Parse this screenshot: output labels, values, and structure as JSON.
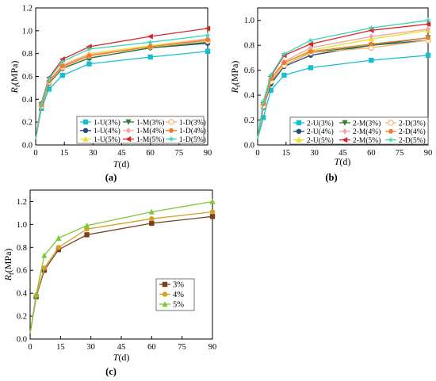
{
  "chart_data": [
    {
      "panel": "(a)",
      "type": "line",
      "xlabel": "T(d)",
      "ylabel": "Rf(MPa)",
      "xlim": [
        0,
        90
      ],
      "ylim": [
        0,
        1.2
      ],
      "xticks": [
        0,
        15,
        30,
        45,
        60,
        75,
        90
      ],
      "yticks": [
        0.0,
        0.2,
        0.4,
        0.6,
        0.8,
        1.0,
        1.2
      ],
      "x": [
        0,
        3,
        7,
        14,
        28,
        60,
        90
      ],
      "legend_columns": 3,
      "series": [
        {
          "name": "1-U(3%)",
          "color": "#17becf",
          "marker": "square",
          "values": [
            0.05,
            0.32,
            0.49,
            0.61,
            0.71,
            0.77,
            0.82
          ]
        },
        {
          "name": "1-U(4%)",
          "color": "#1f4e79",
          "marker": "circle",
          "values": [
            0.05,
            0.34,
            0.54,
            0.67,
            0.76,
            0.85,
            0.89
          ]
        },
        {
          "name": "1-U(5%)",
          "color": "#e8e22a",
          "marker": "triangle-up",
          "values": [
            0.05,
            0.35,
            0.56,
            0.7,
            0.8,
            0.87,
            0.93
          ]
        },
        {
          "name": "1-M(3%)",
          "color": "#2e7d32",
          "marker": "triangle-down",
          "values": [
            0.05,
            0.34,
            0.54,
            0.67,
            0.76,
            0.85,
            0.9
          ]
        },
        {
          "name": "1-M(4%)",
          "color": "#f4a6a6",
          "marker": "diamond",
          "values": [
            0.05,
            0.35,
            0.56,
            0.7,
            0.79,
            0.86,
            0.93
          ]
        },
        {
          "name": "1-M(5%)",
          "color": "#d62728",
          "marker": "triangle-left",
          "values": [
            0.05,
            0.37,
            0.59,
            0.75,
            0.86,
            0.95,
            1.02
          ]
        },
        {
          "name": "1-D(3%)",
          "color": "#f7b26b",
          "marker": "circle-open",
          "values": [
            0.05,
            0.34,
            0.55,
            0.68,
            0.78,
            0.86,
            0.91
          ]
        },
        {
          "name": "1-D(4%)",
          "color": "#ee7d31",
          "marker": "hexagon",
          "values": [
            0.05,
            0.35,
            0.56,
            0.69,
            0.78,
            0.86,
            0.92
          ]
        },
        {
          "name": "1-D(5%)",
          "color": "#3fd5b3",
          "marker": "star",
          "values": [
            0.05,
            0.36,
            0.58,
            0.73,
            0.84,
            0.9,
            0.96
          ]
        }
      ]
    },
    {
      "panel": "(b)",
      "type": "line",
      "xlabel": "T(d)",
      "ylabel": "Rf(MPa)",
      "xlim": [
        0,
        90
      ],
      "ylim": [
        0,
        1.1
      ],
      "xticks": [
        0,
        15,
        30,
        45,
        60,
        75,
        90
      ],
      "yticks": [
        0.0,
        0.2,
        0.4,
        0.6,
        0.8,
        1.0
      ],
      "x": [
        0,
        3,
        7,
        14,
        28,
        60,
        90
      ],
      "legend_columns": 3,
      "series": [
        {
          "name": "2-U(3%)",
          "color": "#17becf",
          "marker": "square",
          "values": [
            0.05,
            0.22,
            0.44,
            0.56,
            0.62,
            0.68,
            0.72
          ]
        },
        {
          "name": "2-U(4%)",
          "color": "#1f4e79",
          "marker": "circle",
          "values": [
            0.05,
            0.3,
            0.49,
            0.63,
            0.72,
            0.8,
            0.84
          ]
        },
        {
          "name": "2-U(5%)",
          "color": "#e8e22a",
          "marker": "triangle-up",
          "values": [
            0.05,
            0.32,
            0.52,
            0.66,
            0.76,
            0.85,
            0.92
          ]
        },
        {
          "name": "2-M(3%)",
          "color": "#2e7d32",
          "marker": "triangle-down",
          "values": [
            0.05,
            0.31,
            0.5,
            0.64,
            0.74,
            0.8,
            0.86
          ]
        },
        {
          "name": "2-M(4%)",
          "color": "#f4a6a6",
          "marker": "diamond",
          "values": [
            0.05,
            0.33,
            0.53,
            0.67,
            0.78,
            0.87,
            0.93
          ]
        },
        {
          "name": "2-M(5%)",
          "color": "#d62728",
          "marker": "triangle-left",
          "values": [
            0.05,
            0.34,
            0.55,
            0.72,
            0.81,
            0.92,
            0.97
          ]
        },
        {
          "name": "2-D(3%)",
          "color": "#f7b26b",
          "marker": "circle-open",
          "values": [
            0.05,
            0.31,
            0.51,
            0.64,
            0.74,
            0.78,
            0.84
          ]
        },
        {
          "name": "2-D(4%)",
          "color": "#ee7d31",
          "marker": "hexagon",
          "values": [
            0.05,
            0.33,
            0.53,
            0.66,
            0.75,
            0.81,
            0.86
          ]
        },
        {
          "name": "2-D(5%)",
          "color": "#3fd5b3",
          "marker": "star",
          "values": [
            0.05,
            0.35,
            0.56,
            0.73,
            0.84,
            0.94,
            1.0
          ]
        }
      ]
    },
    {
      "panel": "(c)",
      "type": "line",
      "xlabel": "T(d)",
      "ylabel": "Rf(MPa)",
      "xlim": [
        0,
        90
      ],
      "ylim": [
        0,
        1.3
      ],
      "xticks": [
        0,
        15,
        30,
        45,
        60,
        75,
        90
      ],
      "yticks": [
        0.0,
        0.2,
        0.4,
        0.6,
        0.8,
        1.0,
        1.2
      ],
      "x": [
        0,
        3,
        7,
        14,
        28,
        60,
        90
      ],
      "legend_columns": 1,
      "series": [
        {
          "name": "3%",
          "color": "#7b3f1a",
          "marker": "square",
          "values": [
            0.05,
            0.37,
            0.6,
            0.78,
            0.91,
            1.01,
            1.07
          ]
        },
        {
          "name": "4%",
          "color": "#d4a02a",
          "marker": "circle",
          "values": [
            0.05,
            0.38,
            0.62,
            0.8,
            0.96,
            1.05,
            1.11
          ]
        },
        {
          "name": "5%",
          "color": "#7ec636",
          "marker": "triangle-up",
          "values": [
            0.05,
            0.39,
            0.73,
            0.88,
            0.99,
            1.11,
            1.2
          ]
        }
      ]
    }
  ]
}
